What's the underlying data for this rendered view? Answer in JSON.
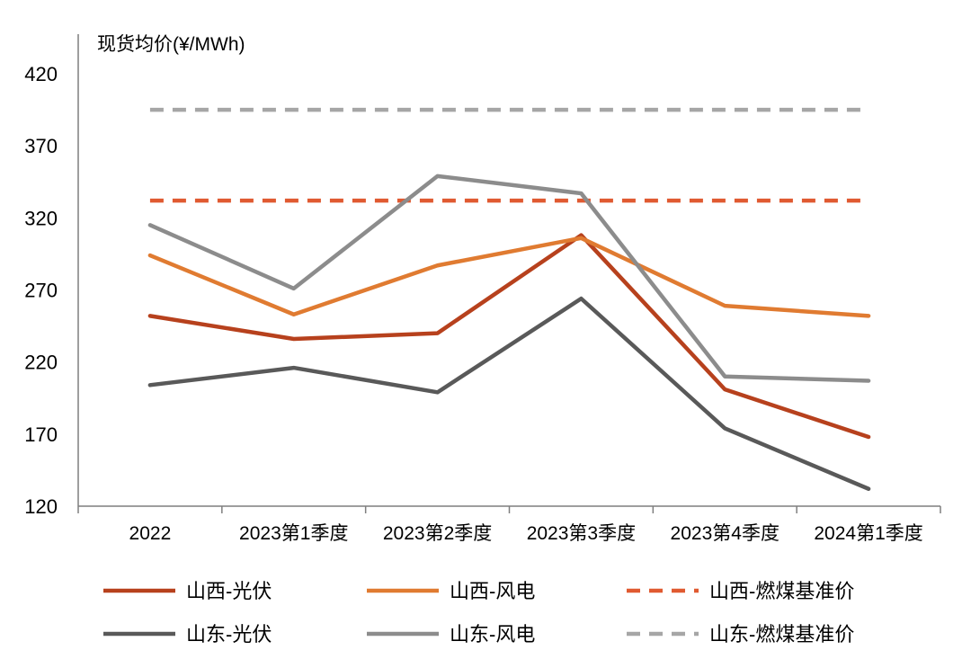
{
  "chart_data": {
    "type": "line",
    "ylabel": "现货均价(¥/MWh)",
    "ylim": [
      120,
      420
    ],
    "yticks": [
      "420",
      "370",
      "320",
      "270",
      "220",
      "170",
      "120"
    ],
    "categories": [
      "2022",
      "2023第1季度",
      "2023第2季度",
      "2023第3季度",
      "2023第4季度",
      "2024第1季度"
    ],
    "grid": false,
    "legend_position": "bottom",
    "series": [
      {
        "name": "山西-光伏",
        "color": "#b7411d",
        "dash": false,
        "values": [
          252,
          236,
          240,
          308,
          201,
          168
        ]
      },
      {
        "name": "山西-风电",
        "color": "#e07b31",
        "dash": false,
        "values": [
          294,
          253,
          287,
          306,
          259,
          252
        ]
      },
      {
        "name": "山西-燃煤基准价",
        "color": "#e05a31",
        "dash": true,
        "values": [
          332,
          332,
          332,
          332,
          332,
          332
        ]
      },
      {
        "name": "山东-光伏",
        "color": "#595959",
        "dash": false,
        "values": [
          204,
          216,
          199,
          264,
          174,
          132
        ]
      },
      {
        "name": "山东-风电",
        "color": "#8c8c8c",
        "dash": false,
        "values": [
          315,
          271,
          349,
          337,
          210,
          207
        ]
      },
      {
        "name": "山东-燃煤基准价",
        "color": "#a6a6a6",
        "dash": true,
        "values": [
          395,
          395,
          395,
          395,
          395,
          395
        ]
      }
    ]
  }
}
